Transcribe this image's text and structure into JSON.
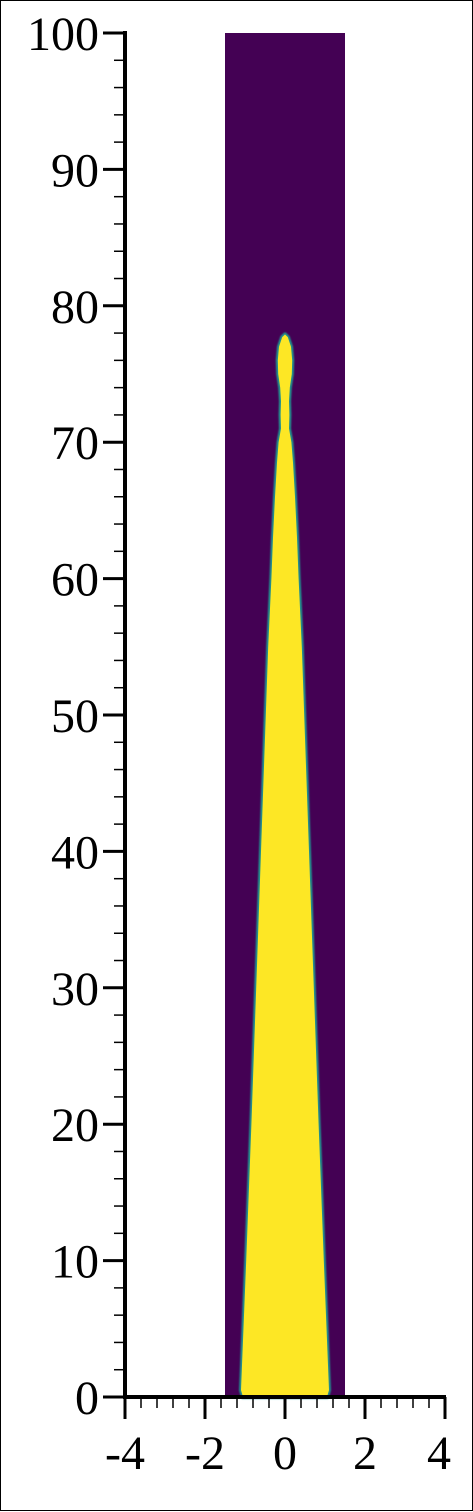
{
  "chart_data": {
    "type": "heatmap",
    "title": "",
    "xlabel": "",
    "ylabel": "",
    "xlim": [
      -4,
      4
    ],
    "ylim": [
      0,
      100
    ],
    "domain_x": [
      -1.5,
      1.5
    ],
    "x_ticks": [
      -4,
      -2,
      0,
      2,
      4
    ],
    "x_tick_labels": [
      "-4",
      "-2",
      "0",
      "2",
      "4"
    ],
    "y_ticks": [
      0,
      10,
      20,
      30,
      40,
      50,
      60,
      70,
      80,
      90,
      100
    ],
    "y_tick_labels": [
      "0",
      "10",
      "20",
      "30",
      "40",
      "50",
      "60",
      "70",
      "80",
      "90",
      "100"
    ],
    "colors": {
      "background_field": "#440154",
      "inner_field": "#fde725",
      "interface": "#21908d"
    },
    "jet_profile": {
      "y": [
        0,
        0.5,
        10,
        20,
        30,
        40,
        50,
        55,
        60,
        63,
        66,
        68.5,
        70,
        71,
        72,
        73,
        74,
        75,
        76,
        77,
        77.7,
        77.9
      ],
      "half_width": [
        1.05,
        1.1,
        0.97,
        0.84,
        0.72,
        0.6,
        0.48,
        0.42,
        0.34,
        0.3,
        0.25,
        0.2,
        0.16,
        0.1,
        0.11,
        0.1,
        0.12,
        0.17,
        0.18,
        0.15,
        0.07,
        0.0
      ]
    }
  }
}
